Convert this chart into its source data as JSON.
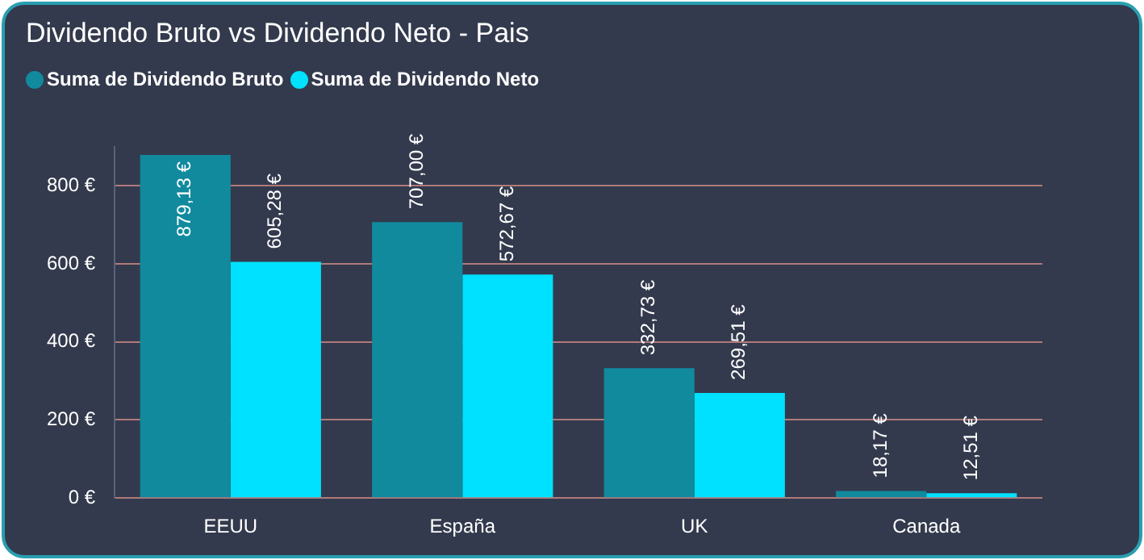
{
  "chart_data": {
    "type": "bar",
    "title": "Dividendo Bruto vs Dividendo Neto - Pais",
    "categories": [
      "EEUU",
      "España",
      "UK",
      "Canada"
    ],
    "series": [
      {
        "name": "Suma de Dividendo Bruto",
        "color": "#118a9e",
        "values": [
          879.13,
          707.0,
          332.73,
          18.17
        ],
        "value_labels": [
          "879,13 €",
          "707,00 €",
          "332,73 €",
          "18,17 €"
        ]
      },
      {
        "name": "Suma de Dividendo Neto",
        "color": "#00e0ff",
        "values": [
          605.28,
          572.67,
          269.51,
          12.51
        ],
        "value_labels": [
          "605,28 €",
          "572,67 €",
          "269,51 €",
          "12,51 €"
        ]
      }
    ],
    "ylim": [
      0,
      900
    ],
    "yticks": [
      {
        "value": 0,
        "label": "0 €"
      },
      {
        "value": 200,
        "label": "200 €"
      },
      {
        "value": 400,
        "label": "400 €"
      },
      {
        "value": 600,
        "label": "600 €"
      },
      {
        "value": 800,
        "label": "800 €"
      }
    ],
    "grid": "y",
    "legend": "top left"
  }
}
